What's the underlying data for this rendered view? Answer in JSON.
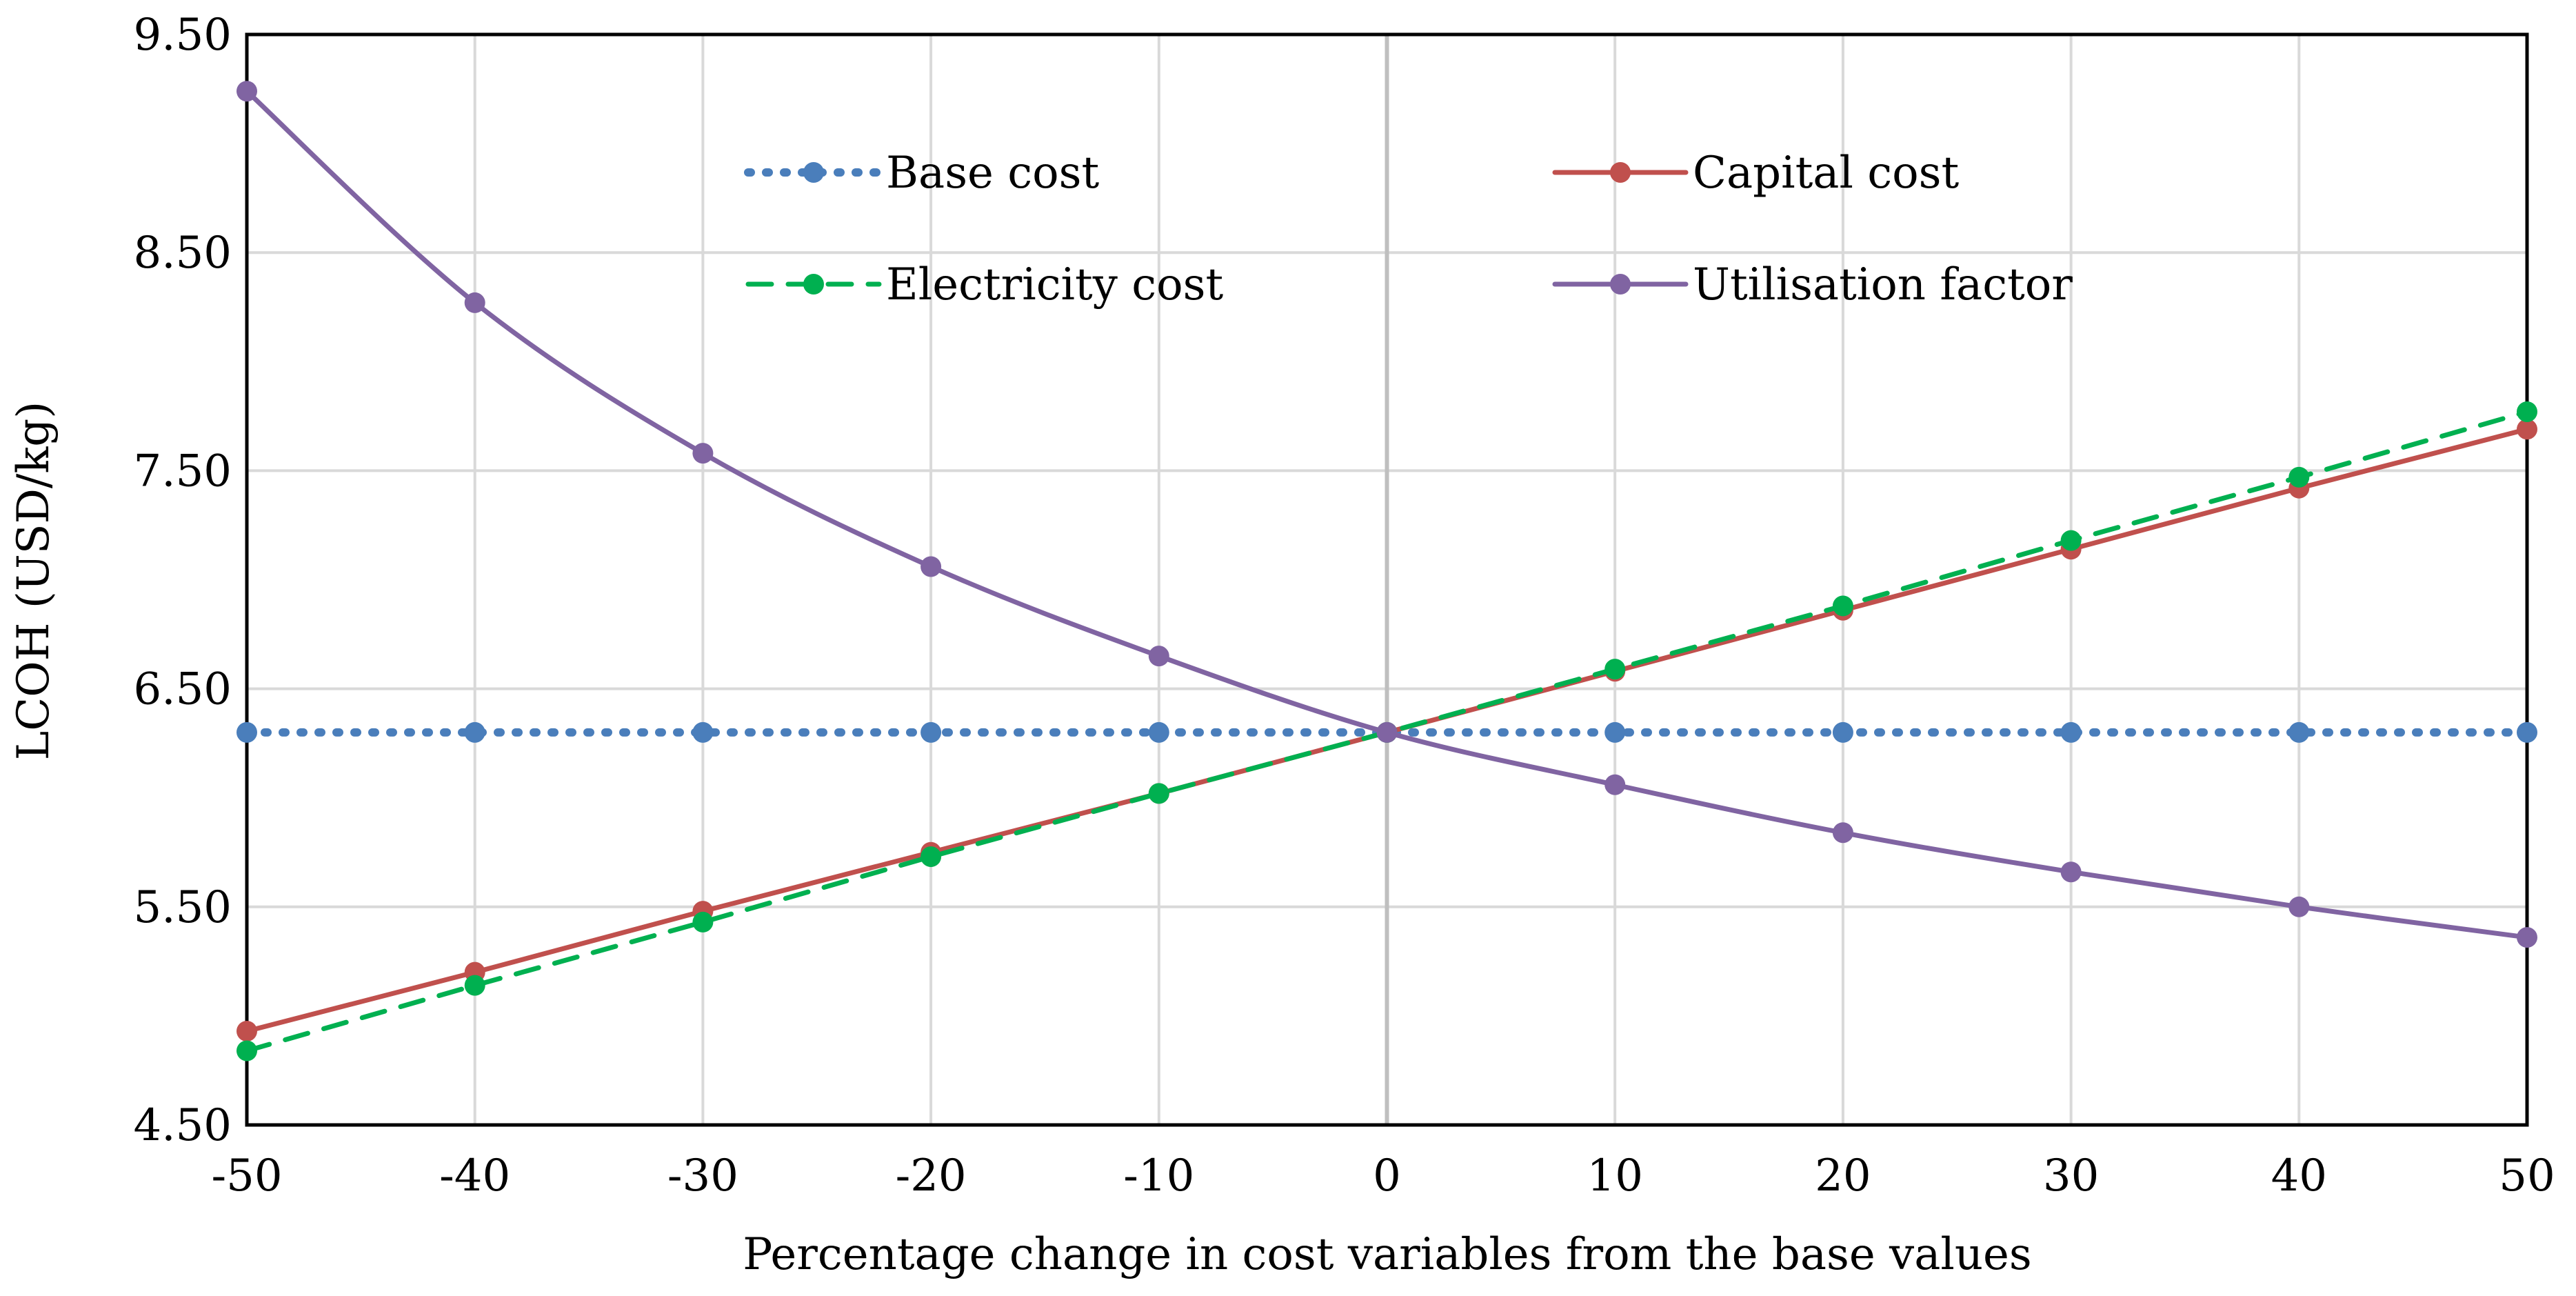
{
  "chart_data": {
    "type": "line",
    "title": "",
    "xlabel": "Percentage change in cost variables from the base values",
    "ylabel": "LCOH (USD/kg)",
    "x": [
      -50,
      -40,
      -30,
      -20,
      -10,
      0,
      10,
      20,
      30,
      40,
      50
    ],
    "xlim": [
      -50,
      50
    ],
    "ylim": [
      4.5,
      9.5
    ],
    "x_tick_labels": [
      "-50",
      "-40",
      "-30",
      "-20",
      "-10",
      "0",
      "10",
      "20",
      "30",
      "40",
      "50"
    ],
    "y_tick_values": [
      4.5,
      5.5,
      6.5,
      7.5,
      8.5,
      9.5
    ],
    "y_tick_labels": [
      "4.50",
      "5.50",
      "6.50",
      "7.50",
      "8.50",
      "9.50"
    ],
    "grid": true,
    "legend_position": "top-center",
    "series": [
      {
        "name": "Base cost",
        "color": "#4a7ebb",
        "line_style": "dotted",
        "values": [
          6.3,
          6.3,
          6.3,
          6.3,
          6.3,
          6.3,
          6.3,
          6.3,
          6.3,
          6.3,
          6.3
        ]
      },
      {
        "name": "Capital cost",
        "color": "#c0504d",
        "line_style": "solid",
        "values": [
          4.93,
          5.2,
          5.48,
          5.75,
          6.02,
          6.3,
          6.58,
          6.86,
          7.14,
          7.42,
          7.69
        ]
      },
      {
        "name": "Electricity cost",
        "color": "#00b050",
        "line_style": "dashed",
        "values": [
          4.84,
          5.14,
          5.43,
          5.73,
          6.02,
          6.3,
          6.59,
          6.88,
          7.18,
          7.47,
          7.77
        ]
      },
      {
        "name": "Utilisation factor",
        "color": "#8064a2",
        "line_style": "solid",
        "smooth": true,
        "values": [
          9.24,
          8.27,
          7.58,
          7.06,
          6.65,
          6.3,
          6.06,
          5.84,
          5.66,
          5.5,
          5.36
        ]
      }
    ]
  }
}
